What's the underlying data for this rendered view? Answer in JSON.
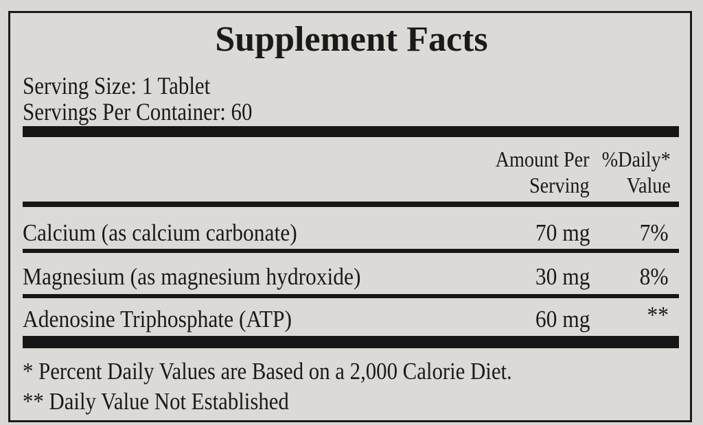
{
  "title": "Supplement Facts",
  "serving_size": "Serving Size: 1 Tablet",
  "servings_per_container": "Servings Per Container: 60",
  "headers": {
    "amount_line1": "Amount Per",
    "amount_line2": "Serving",
    "dv_line1": "%Daily*",
    "dv_line2": "Value"
  },
  "rows": [
    {
      "name": "Calcium (as calcium carbonate)",
      "amount": "70 mg",
      "dv": "7%"
    },
    {
      "name": "Magnesium (as magnesium hydroxide)",
      "amount": "30 mg",
      "dv": "8%"
    },
    {
      "name": "Adenosine Triphosphate (ATP)",
      "amount": "60 mg",
      "dv": "**"
    }
  ],
  "footnotes": [
    "* Percent Daily Values are Based on a 2,000 Calorie Diet.",
    "** Daily Value Not Established"
  ]
}
